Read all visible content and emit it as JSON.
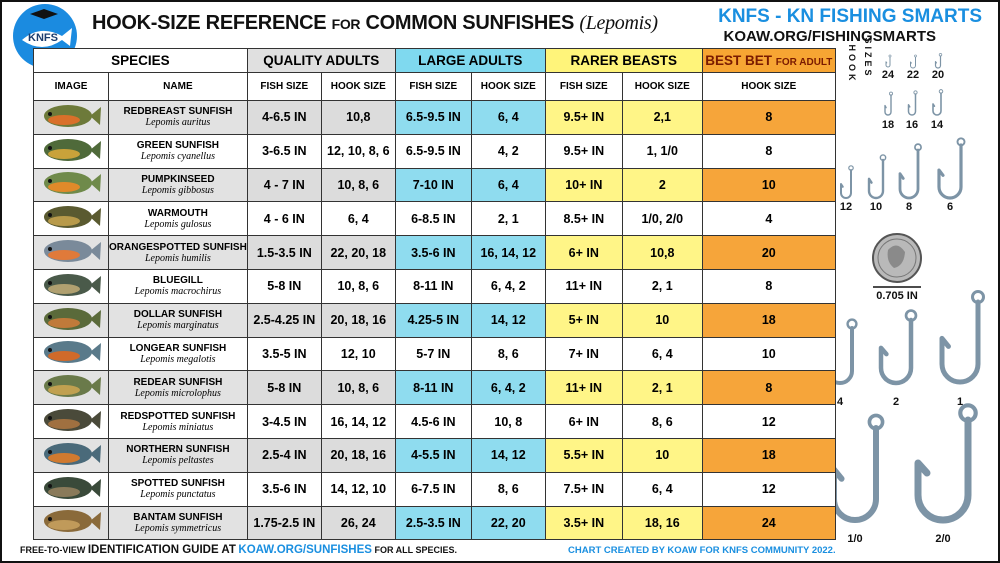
{
  "header": {
    "logo": "KNFS",
    "title_main": "HOOK-SIZE REFERENCE",
    "title_for": "FOR",
    "title_rest": "COMMON SUNFISHES",
    "title_genus": "(Lepomis)",
    "brand": "KNFS - KN FISHING SMARTS",
    "brand_url": "KOAW.ORG/FISHINGSMARTS"
  },
  "table": {
    "group_headers": [
      "SPECIES",
      "QUALITY ADULTS",
      "LARGE ADULTS",
      "RARER BEASTS"
    ],
    "best_bet_header": {
      "main": "BEST BET",
      "small": "FOR ADULT"
    },
    "column_headers": [
      "IMAGE",
      "NAME",
      "FISH SIZE",
      "HOOK SIZE",
      "FISH SIZE",
      "HOOK SIZE",
      "FISH SIZE",
      "HOOK SIZE",
      "HOOK SIZE"
    ],
    "rows": [
      {
        "name": "REDBREAST SUNFISH",
        "latin": "Lepomis auritus",
        "cells": [
          "4-6.5 IN",
          "10,8",
          "6.5-9.5 IN",
          "6, 4",
          "9.5+ IN",
          "2,1",
          "8"
        ]
      },
      {
        "name": "GREEN SUNFISH",
        "latin": "Lepomis cyanellus",
        "cells": [
          "3-6.5 IN",
          "12, 10, 8, 6",
          "6.5-9.5 IN",
          "4, 2",
          "9.5+ IN",
          "1, 1/0",
          "8"
        ]
      },
      {
        "name": "PUMPKINSEED",
        "latin": "Lepomis gibbosus",
        "cells": [
          "4 - 7 IN",
          "10, 8, 6",
          "7-10 IN",
          "6, 4",
          "10+ IN",
          "2",
          "10"
        ]
      },
      {
        "name": "WARMOUTH",
        "latin": "Lepomis gulosus",
        "cells": [
          "4 - 6 IN",
          "6, 4",
          "6-8.5 IN",
          "2, 1",
          "8.5+ IN",
          "1/0, 2/0",
          "4"
        ]
      },
      {
        "name": "ORANGESPOTTED SUNFISH",
        "latin": "Lepomis humilis",
        "cells": [
          "1.5-3.5 IN",
          "22, 20, 18",
          "3.5-6 IN",
          "16, 14, 12",
          "6+ IN",
          "10,8",
          "20"
        ]
      },
      {
        "name": "BLUEGILL",
        "latin": "Lepomis macrochirus",
        "cells": [
          "5-8 IN",
          "10, 8, 6",
          "8-11 IN",
          "6, 4, 2",
          "11+ IN",
          "2, 1",
          "8"
        ]
      },
      {
        "name": "DOLLAR SUNFISH",
        "latin": "Lepomis marginatus",
        "cells": [
          "2.5-4.25 IN",
          "20, 18, 16",
          "4.25-5 IN",
          "14, 12",
          "5+ IN",
          "10",
          "18"
        ]
      },
      {
        "name": "LONGEAR SUNFISH",
        "latin": "Lepomis megalotis",
        "cells": [
          "3.5-5 IN",
          "12, 10",
          "5-7 IN",
          "8, 6",
          "7+ IN",
          "6, 4",
          "10"
        ]
      },
      {
        "name": "REDEAR SUNFISH",
        "latin": "Lepomis microlophus",
        "cells": [
          "5-8 IN",
          "10, 8, 6",
          "8-11 IN",
          "6, 4, 2",
          "11+ IN",
          "2, 1",
          "8"
        ]
      },
      {
        "name": "REDSPOTTED SUNFISH",
        "latin": "Lepomis miniatus",
        "cells": [
          "3-4.5 IN",
          "16, 14, 12",
          "4.5-6 IN",
          "10, 8",
          "6+ IN",
          "8, 6",
          "12"
        ]
      },
      {
        "name": "NORTHERN SUNFISH",
        "latin": "Lepomis peltastes",
        "cells": [
          "2.5-4 IN",
          "20, 18, 16",
          "4-5.5 IN",
          "14, 12",
          "5.5+ IN",
          "10",
          "18"
        ]
      },
      {
        "name": "SPOTTED SUNFISH",
        "latin": "Lepomis punctatus",
        "cells": [
          "3.5-6 IN",
          "14, 12, 10",
          "6-7.5 IN",
          "8, 6",
          "7.5+ IN",
          "6, 4",
          "12"
        ]
      },
      {
        "name": "BANTAM SUNFISH",
        "latin": "Lepomis symmetricus",
        "cells": [
          "1.75-2.5 IN",
          "26, 24",
          "2.5-3.5 IN",
          "22, 20",
          "3.5+ IN",
          "18, 16",
          "24"
        ]
      }
    ]
  },
  "hook_chart": {
    "title_1": "HOOK",
    "title_2": "SIZES",
    "sizes": [
      "24",
      "22",
      "20",
      "18",
      "16",
      "14",
      "12",
      "10",
      "8",
      "6",
      "4",
      "2",
      "1",
      "1/0",
      "2/0"
    ],
    "dime_label": "0.705 IN"
  },
  "footer": {
    "left_prefix": "FREE-TO-VIEW",
    "left_main": "IDENTIFICATION GUIDE AT",
    "link": "KOAW.ORG/SUNFISHES",
    "left_suffix": "FOR ALL SPECIES.",
    "credit": "CHART CREATED BY KOAW FOR KNFS COMMUNITY 2022."
  }
}
